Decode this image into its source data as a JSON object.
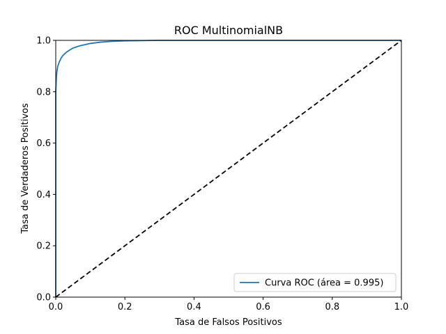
{
  "chart_data": {
    "type": "line",
    "title": "ROC MultinomialNB",
    "xlabel": "Tasa de Falsos Positivos",
    "ylabel": "Tasa de Verdaderos Positivos",
    "xlim": [
      0,
      1
    ],
    "ylim": [
      0,
      1
    ],
    "xticks": [
      "0.0",
      "0.2",
      "0.4",
      "0.6",
      "0.8",
      "1.0"
    ],
    "yticks": [
      "0.0",
      "0.2",
      "0.4",
      "0.6",
      "0.8",
      "1.0"
    ],
    "grid": false,
    "legend_position": "lower-right",
    "series": [
      {
        "name": "Curva ROC (área = 0.995)",
        "color": "#1f77b4",
        "style": "solid",
        "x": [
          0.0,
          0.0,
          0.002,
          0.004,
          0.006,
          0.01,
          0.015,
          0.02,
          0.03,
          0.04,
          0.05,
          0.07,
          0.1,
          0.13,
          0.16,
          0.2,
          0.25,
          0.3,
          0.4,
          0.6,
          0.8,
          1.0
        ],
        "y": [
          0.0,
          0.8,
          0.86,
          0.885,
          0.9,
          0.915,
          0.93,
          0.94,
          0.953,
          0.962,
          0.97,
          0.979,
          0.988,
          0.993,
          0.996,
          0.998,
          0.999,
          1.0,
          1.0,
          1.0,
          1.0,
          1.0
        ]
      },
      {
        "name": "",
        "color": "#000000",
        "style": "dashed",
        "x": [
          0,
          1
        ],
        "y": [
          0,
          1
        ]
      }
    ]
  }
}
